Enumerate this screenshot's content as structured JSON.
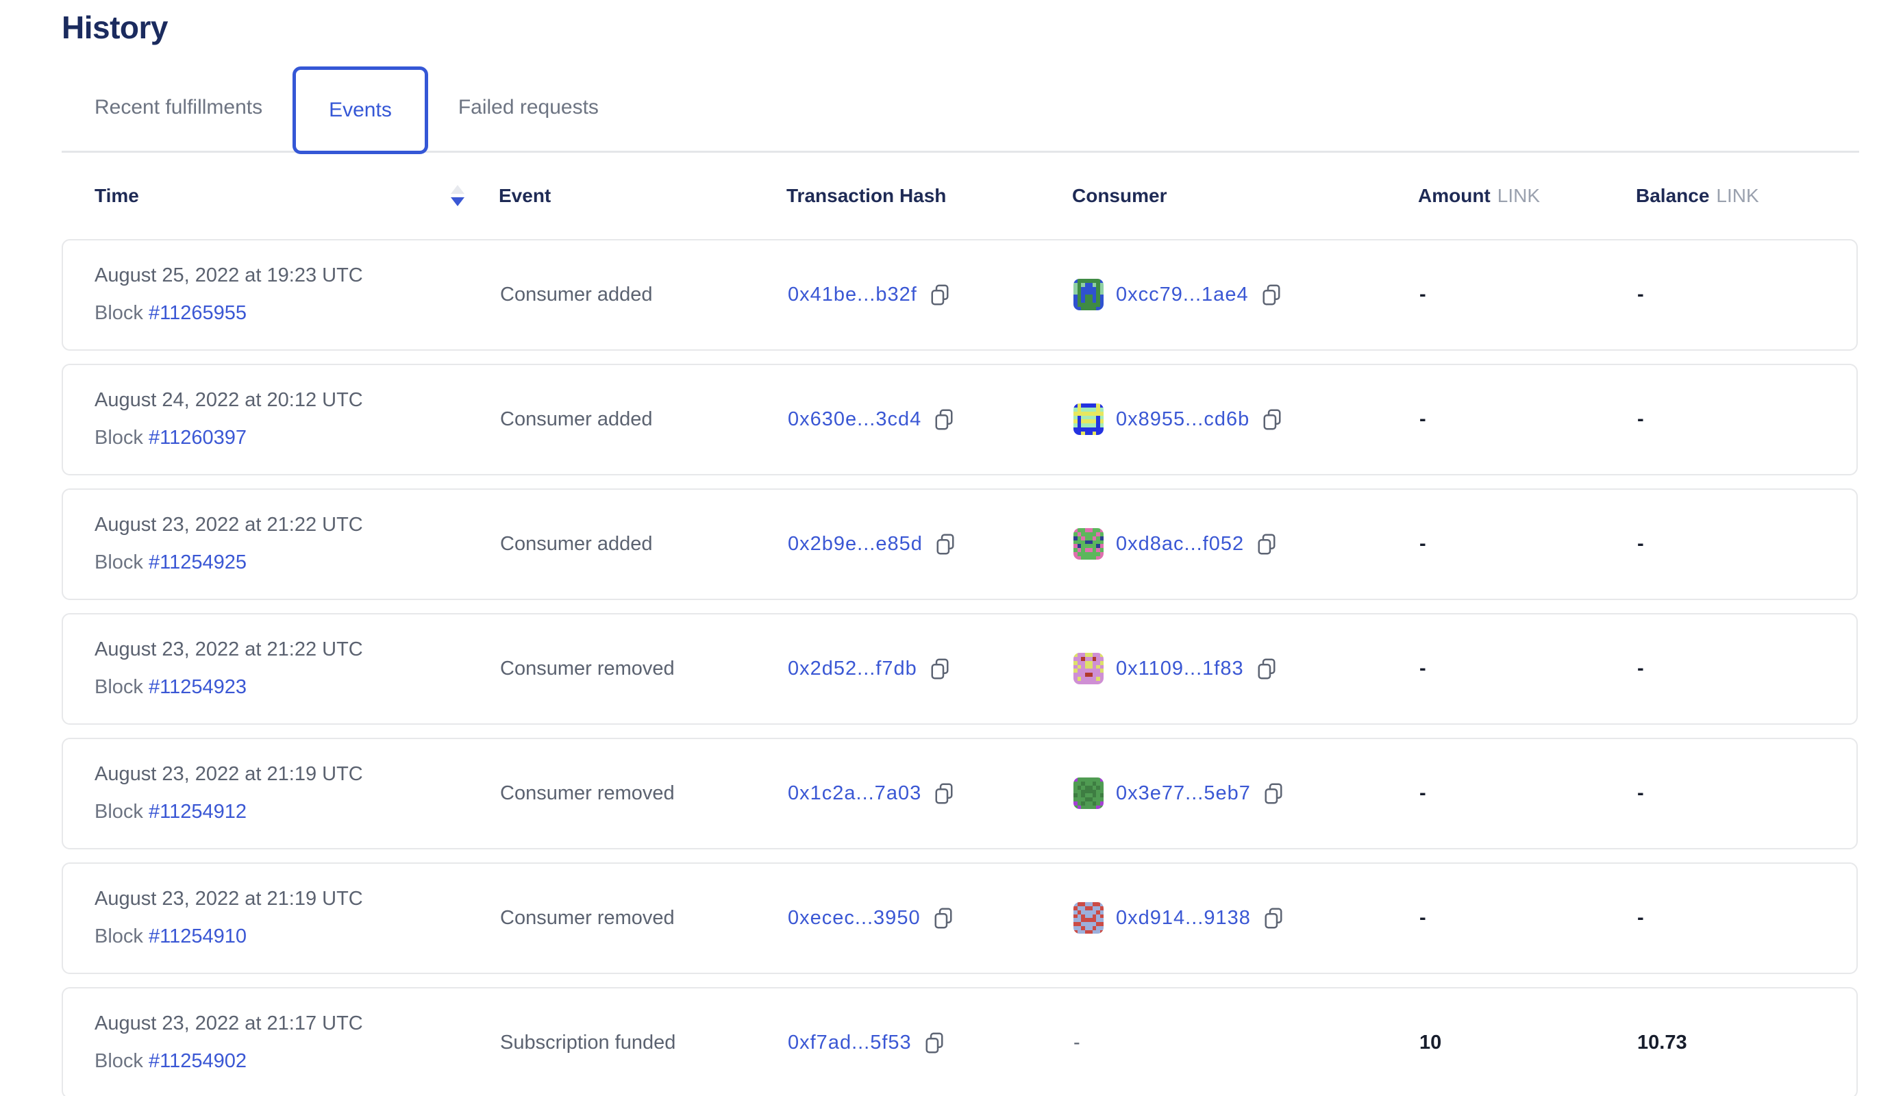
{
  "page": {
    "title": "History"
  },
  "tabs": [
    {
      "label": "Recent fulfillments",
      "active": false
    },
    {
      "label": "Events",
      "active": true
    },
    {
      "label": "Failed requests",
      "active": false
    }
  ],
  "sort": {
    "column": "Time",
    "direction": "descending"
  },
  "colors": {
    "accent_blue": "#3557d6",
    "heading_navy": "#1b2b5e",
    "text_gray": "#5b6270",
    "muted_gray": "#6d7482",
    "unit_gray": "#9aa1ae",
    "card_border": "#e7e8ea",
    "value_dark": "#171d2c"
  },
  "icons": {
    "copy": "copy-icon",
    "sort": "sort-descending-icon"
  },
  "table": {
    "block_label": "Block",
    "columns": {
      "time": "Time",
      "event": "Event",
      "transaction_hash": "Transaction Hash",
      "consumer": "Consumer",
      "amount": "Amount",
      "balance": "Balance",
      "unit": "LINK"
    },
    "rows": [
      {
        "date": "August 25, 2022 at 19:23 UTC",
        "block_number": "#11265955",
        "event": "Consumer added",
        "tx_hash": "0x41be...b32f",
        "consumer": "0xcc79...1ae4",
        "amount": "-",
        "balance": "-",
        "avatar": {
          "colors": [
            "#3f8b44",
            "#2f52d0",
            "#8fd0a4"
          ],
          "grid": [
            "10000001",
            "20211202",
            "20111102",
            "20111102",
            "10100101",
            "10100101",
            "10000001",
            "11000011"
          ]
        }
      },
      {
        "date": "August 24, 2022 at 20:12 UTC",
        "block_number": "#11260397",
        "event": "Consumer added",
        "tx_hash": "0x630e...3cd4",
        "consumer": "0x8955...cd6b",
        "amount": "-",
        "balance": "-",
        "avatar": {
          "colors": [
            "#2433e0",
            "#e7e75f",
            "#a5ecb8"
          ],
          "grid": [
            "01000010",
            "21222212",
            "11111111",
            "20222202",
            "10111101",
            "20222202",
            "00000000",
            "00100100"
          ]
        }
      },
      {
        "date": "August 23, 2022 at 21:22 UTC",
        "block_number": "#11254925",
        "event": "Consumer added",
        "tx_hash": "0x2b9e...e85d",
        "consumer": "0xd8ac...f052",
        "amount": "-",
        "balance": "-",
        "avatar": {
          "colors": [
            "#5cb75c",
            "#df6fae",
            "#2b3f8f"
          ],
          "grid": [
            "10011001",
            "01000010",
            "20100102",
            "00022000",
            "12000021",
            "01011010",
            "10000001",
            "11000011"
          ]
        }
      },
      {
        "date": "August 23, 2022 at 21:22 UTC",
        "block_number": "#11254923",
        "event": "Consumer removed",
        "tx_hash": "0x2d52...f7db",
        "consumer": "0x1109...1f83",
        "amount": "-",
        "balance": "-",
        "avatar": {
          "colors": [
            "#cf8fd4",
            "#dde06a",
            "#b03a2c"
          ],
          "grid": [
            "10011001",
            "00200200",
            "10011001",
            "01011010",
            "10000001",
            "00022000",
            "01000010",
            "00000000"
          ]
        }
      },
      {
        "date": "August 23, 2022 at 21:19 UTC",
        "block_number": "#11254912",
        "event": "Consumer removed",
        "tx_hash": "0x1c2a...7a03",
        "consumer": "0x3e77...5eb7",
        "amount": "-",
        "balance": "-",
        "avatar": {
          "colors": [
            "#4f9b52",
            "#a43fd4",
            "#3e7d42"
          ],
          "grid": [
            "10000001",
            "00200200",
            "02022020",
            "00222200",
            "20200202",
            "00022000",
            "10200201",
            "01000010"
          ]
        }
      },
      {
        "date": "August 23, 2022 at 21:19 UTC",
        "block_number": "#11254910",
        "event": "Consumer removed",
        "tx_hash": "0xecec...3950",
        "consumer": "0xd914...9138",
        "amount": "-",
        "balance": "-",
        "avatar": {
          "colors": [
            "#cb4b45",
            "#9cb0dc",
            "#c2cdeb"
          ],
          "grid": [
            "10011001",
            "01100110",
            "10111101",
            "01011010",
            "11000011",
            "00111100",
            "11011011",
            "01100110"
          ]
        }
      },
      {
        "date": "August 23, 2022 at 21:17 UTC",
        "block_number": "#11254902",
        "event": "Subscription funded",
        "tx_hash": "0xf7ad...5f53",
        "consumer": "-",
        "amount": "10",
        "balance": "10.73",
        "avatar": null
      }
    ]
  }
}
